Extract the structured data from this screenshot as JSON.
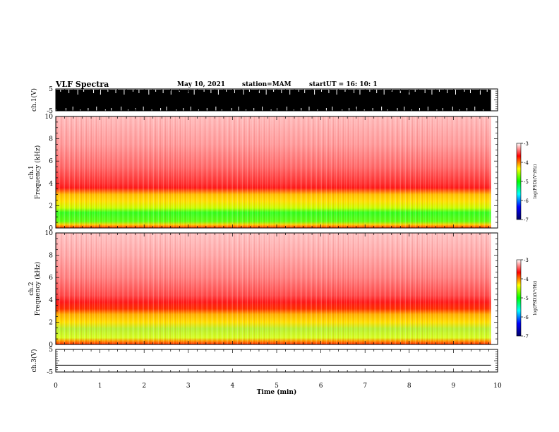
{
  "header": {
    "title": "VLF Spectra",
    "date": "May 10, 2021",
    "station": "station=MAM",
    "start_label": "start",
    "start_ut": "UT = 16: 10: 1"
  },
  "colors": {
    "spectrogram_scale": [
      "#000066",
      "#0000ff",
      "#00ffff",
      "#00ff00",
      "#ffff00",
      "#ff0000",
      "#ffffff"
    ],
    "waveform": "#000000"
  },
  "chart_data": [
    {
      "type": "line",
      "name": "ch1-waveform",
      "ylabel": "ch.1(V)",
      "ylim": [
        -5,
        5
      ],
      "yticks": [
        "5",
        "-5"
      ],
      "xlim": [
        0,
        10
      ],
      "note_values": "saturated wideband signal filling most of the range"
    },
    {
      "type": "heatmap",
      "name": "ch1-spectrogram",
      "ylabel": "ch.1\nFrequency (kHz)",
      "ylabel_line1": "ch.1",
      "ylabel_line2": "Frequency (kHz)",
      "ylim": [
        0,
        10
      ],
      "yticks": [
        "0",
        "2",
        "4",
        "6",
        "8",
        "10"
      ],
      "xlim": [
        0,
        9.85
      ],
      "colorbar": {
        "label": "log(PSD)(V²/Hz)",
        "range": [
          -7,
          -3
        ],
        "ticks": [
          "-3",
          "-4",
          "-5",
          "-6",
          "-7"
        ]
      },
      "bands_khz_logpsd": [
        {
          "f": [
            0,
            0.4
          ],
          "logpsd": -4.0
        },
        {
          "f": [
            0.4,
            2.4
          ],
          "logpsd": -5.2
        },
        {
          "f": [
            2.4,
            3.6
          ],
          "logpsd": -4.8
        },
        {
          "f": [
            3.6,
            4.2
          ],
          "logpsd": -4.0
        },
        {
          "f": [
            4.2,
            10
          ],
          "logpsd": -3.5
        }
      ]
    },
    {
      "type": "heatmap",
      "name": "ch2-spectrogram",
      "ylabel_line1": "ch.2",
      "ylabel_line2": "Frequency (kHz)",
      "ylim": [
        0,
        10
      ],
      "yticks": [
        "0",
        "2",
        "4",
        "6",
        "8",
        "10"
      ],
      "xlim": [
        0,
        9.85
      ],
      "colorbar": {
        "label": "log(PSD)(V²/Hz)",
        "range": [
          -7,
          -3
        ],
        "ticks": [
          "-3",
          "-4",
          "-5",
          "-6",
          "-7"
        ]
      },
      "bands_khz_logpsd": [
        {
          "f": [
            0,
            0.4
          ],
          "logpsd": -4.0
        },
        {
          "f": [
            0.4,
            2.6
          ],
          "logpsd": -4.8
        },
        {
          "f": [
            2.6,
            3.6
          ],
          "logpsd": -4.5
        },
        {
          "f": [
            3.6,
            4.4
          ],
          "logpsd": -4.0
        },
        {
          "f": [
            4.4,
            10
          ],
          "logpsd": -3.5
        }
      ]
    },
    {
      "type": "line",
      "name": "ch3-waveform",
      "ylabel": "ch.3(V)",
      "ylim": [
        -5,
        5
      ],
      "yticks": [
        "5",
        "-5"
      ],
      "xlim": [
        0,
        9.85
      ],
      "x": [
        0,
        9.85
      ],
      "y": [
        -2,
        -2
      ]
    }
  ],
  "xaxis": {
    "label": "Time (min)",
    "ticks": [
      "0",
      "1",
      "2",
      "3",
      "4",
      "5",
      "6",
      "7",
      "8",
      "9",
      "10"
    ],
    "range": [
      0,
      10
    ]
  }
}
